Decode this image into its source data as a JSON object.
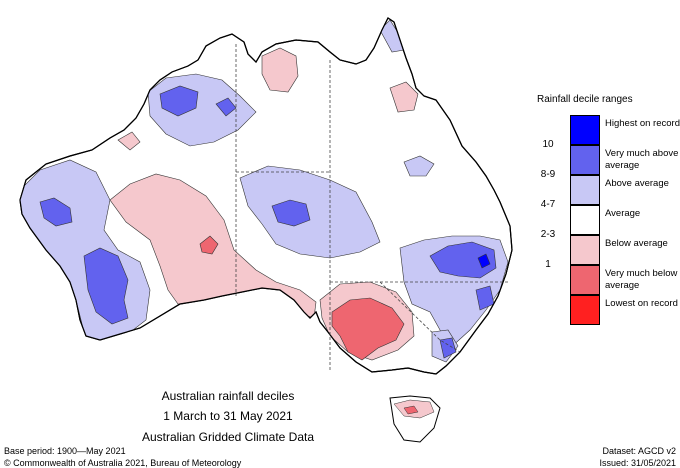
{
  "legend": {
    "title": "Rainfall decile ranges",
    "items": [
      {
        "code": "",
        "label": "Highest on record",
        "color": "#0000ff"
      },
      {
        "code": "10",
        "label": "Very much above average",
        "color": "#6262ee"
      },
      {
        "code": "8-9",
        "label": "Above average",
        "color": "#c8c8f5"
      },
      {
        "code": "4-7",
        "label": "Average",
        "color": "#ffffff"
      },
      {
        "code": "2-3",
        "label": "Below average",
        "color": "#f5c8cd"
      },
      {
        "code": "1",
        "label": "Very much below average",
        "color": "#ee6670"
      },
      {
        "code": "",
        "label": "Lowest on record",
        "color": "#ff2020"
      }
    ]
  },
  "map_title": {
    "line1": "Australian rainfall deciles",
    "line2": "1 March to 31 May 2021",
    "line3": "Australian Gridded Climate Data"
  },
  "footer": {
    "base_period": "Base period: 1900—May 2021",
    "dataset": "Dataset: AGCD v2",
    "copyright": "© Commonwealth of Australia 2021, Bureau of Meteorology",
    "issued": "Issued: 31/05/2021"
  }
}
